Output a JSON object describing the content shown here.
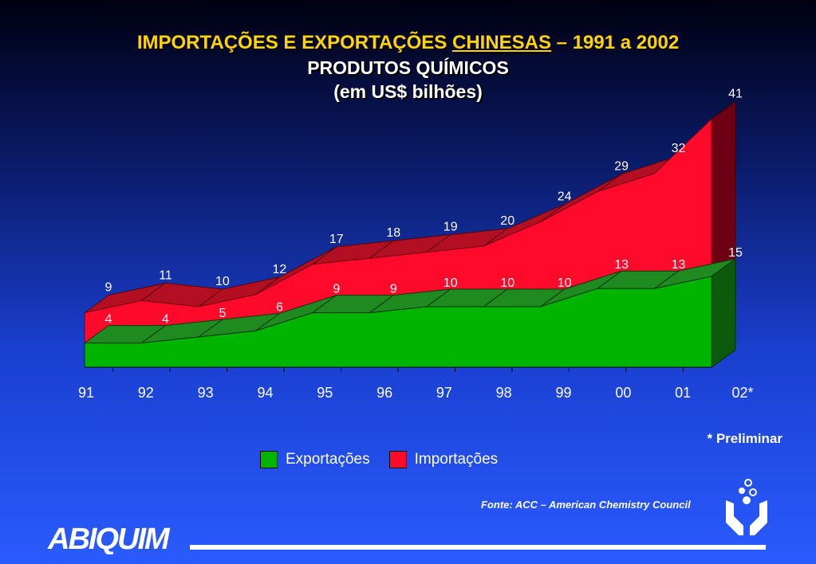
{
  "title": {
    "prefix": "IMPORTAÇÕES E EXPORTAÇÕES ",
    "highlight": "CHINESAS",
    "suffix": " – 1991 a 2002",
    "line2": "PRODUTOS QUÍMICOS",
    "line3": "(em US$ bilhões)"
  },
  "chart_data": {
    "type": "area",
    "categories": [
      "91",
      "92",
      "93",
      "94",
      "95",
      "96",
      "97",
      "98",
      "99",
      "00",
      "01",
      "02*"
    ],
    "series": [
      {
        "name": "Exportações",
        "values": [
          4,
          4,
          5,
          6,
          9,
          9,
          10,
          10,
          10,
          13,
          13,
          15
        ],
        "color": "#00b400"
      },
      {
        "name": "Importações",
        "values": [
          9,
          11,
          10,
          12,
          17,
          18,
          19,
          20,
          24,
          29,
          32,
          41
        ],
        "color": "#ff0a2a"
      }
    ],
    "ylim": [
      0,
      45
    ],
    "grid": false,
    "legend_position": "bottom"
  },
  "footnote": "*  Preliminar",
  "legend": {
    "exports": "Exportações",
    "imports": "Importações"
  },
  "source": "Fonte: ACC – American Chemistry Council",
  "logo_text": "ABIQUIM",
  "colors": {
    "accent": "#ffd400",
    "exports": "#00b400",
    "imports": "#ff0a2a"
  }
}
